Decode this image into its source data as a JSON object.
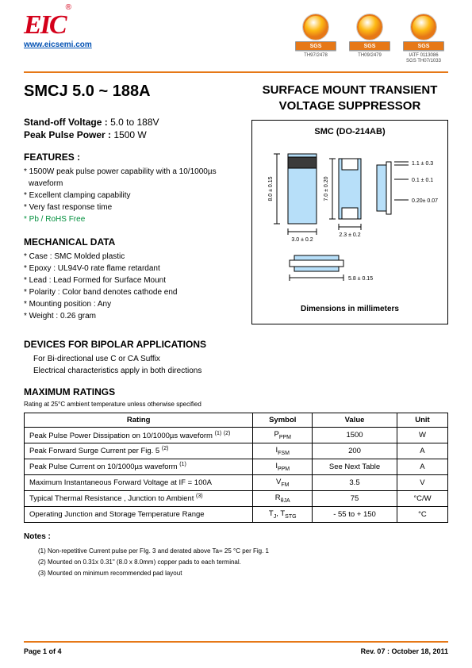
{
  "header": {
    "logo_text": "EIC",
    "website": "www.eicsemi.com",
    "certs": [
      {
        "bar": "SGS",
        "label": "TH97/2478"
      },
      {
        "bar": "SGS",
        "label": "TH09/2479"
      },
      {
        "bar": "SGS",
        "label": "IATF 0113086\nSGS TH07/1033"
      }
    ]
  },
  "title": {
    "part": "SMCJ 5.0 ~ 188A",
    "desc": "SURFACE MOUNT TRANSIENT VOLTAGE SUPPRESSOR"
  },
  "specs": {
    "standoff_label": "Stand-off Voltage :",
    "standoff_val": "5.0 to 188V",
    "peak_label": "Peak Pulse Power :",
    "peak_val": "1500 W"
  },
  "features": {
    "heading": "FEATURES :",
    "items": [
      "1500W peak pulse power capability with a 10/1000µs waveform",
      "Excellent clamping capability",
      "Very fast response time",
      "Pb / RoHS Free"
    ]
  },
  "mechanical": {
    "heading": "MECHANICAL DATA",
    "items": [
      "Case :  SMC Molded plastic",
      "Epoxy : UL94V-0 rate flame retardant",
      "Lead : Lead Formed for Surface Mount",
      "Polarity : Color band denotes cathode end",
      "Mounting  position : Any",
      "Weight :  0.26 gram"
    ]
  },
  "package": {
    "name": "SMC (DO-214AB)",
    "dims_label": "Dimensions in millimeters",
    "dims": {
      "body_h": "8.0 ± 0.15",
      "body_w": "3.0 ± 0.2",
      "pad_h": "7.0 ± 0.20",
      "pad_w": "2.3 ± 0.2",
      "side_t1": "1.1 ± 0.3",
      "side_t2": "0.1 ± 0.1",
      "side_t3": "0.20± 0.07",
      "overall_w": "5.8 ± 0.15"
    },
    "colors": {
      "body": "#b7dff9",
      "band": "#3b3b3b",
      "line": "#000000"
    }
  },
  "bipolar": {
    "heading": "DEVICES FOR BIPOLAR APPLICATIONS",
    "line1": "For Bi-directional use C or CA Suffix",
    "line2": "Electrical characteristics apply in both directions"
  },
  "ratings": {
    "heading": "MAXIMUM RATINGS",
    "subnote": "Rating at 25°C ambient temperature unless otherwise specified",
    "columns": [
      "Rating",
      "Symbol",
      "Value",
      "Unit"
    ],
    "rows": [
      {
        "rating": "Peak Pulse Power Dissipation on 10/1000µs waveform (1) (2)",
        "symbol": "P<sub>PPM</sub>",
        "value": "1500",
        "unit": "W"
      },
      {
        "rating": "Peak Forward Surge Current per Fig. 5 (2)",
        "symbol": "I<sub>FSM</sub>",
        "value": "200",
        "unit": "A"
      },
      {
        "rating": "Peak Pulse Current on 10/1000µs waveform (1)",
        "symbol": "I<sub>PPM</sub>",
        "value": "See Next Table",
        "unit": "A"
      },
      {
        "rating": "Maximum Instantaneous Forward Voltage at IF = 100A",
        "symbol": "V<sub>FM</sub>",
        "value": "3.5",
        "unit": "V"
      },
      {
        "rating": "Typical Thermal Resistance , Junction to Ambient (3)",
        "symbol": "R<sub>θJA</sub>",
        "value": "75",
        "unit": "°C/W"
      },
      {
        "rating": "Operating Junction and Storage Temperature Range",
        "symbol": "T<sub>J</sub>, T<sub>STG</sub>",
        "value": "- 55 to + 150",
        "unit": "°C"
      }
    ]
  },
  "notes": {
    "heading": "Notes :",
    "items": [
      "(1) Non-repetitive Current pulse per FIg. 3 and derated above Ta= 25 °C per Fig. 1",
      "(2) Mounted on 0.31x 0.31\" (8.0 x 8.0mm) copper pads to each terminal.",
      "(3) Mounted on minimum recommended pad layout"
    ]
  },
  "footer": {
    "left": "Page 1 of 4",
    "right": "Rev. 07 : October 18, 2011"
  }
}
